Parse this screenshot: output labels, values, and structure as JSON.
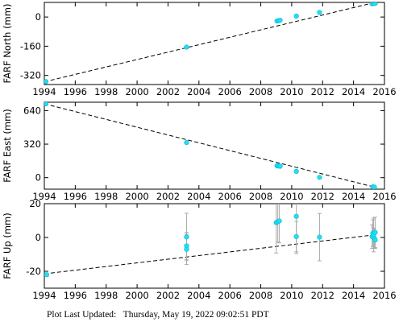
{
  "chart_data": [
    {
      "type": "scatter",
      "ylabel": "FARF North (mm)",
      "xlim": [
        1994,
        2016
      ],
      "ylim": [
        -370,
        80
      ],
      "xticks": [
        1994,
        1996,
        1998,
        2000,
        2002,
        2004,
        2006,
        2008,
        2010,
        2012,
        2014,
        2016
      ],
      "yticks": [
        -320,
        -160,
        0
      ],
      "grid": false,
      "trend": {
        "x": [
          1994.0,
          2015.3
        ],
        "y": [
          -355,
          78
        ]
      },
      "points": [
        {
          "x": 1994.1,
          "y": -354,
          "err": 0
        },
        {
          "x": 2003.2,
          "y": -165,
          "err": 0
        },
        {
          "x": 2009.05,
          "y": -22,
          "err": 0
        },
        {
          "x": 2009.15,
          "y": -20,
          "err": 0
        },
        {
          "x": 2009.25,
          "y": -18,
          "err": 0
        },
        {
          "x": 2010.3,
          "y": 5,
          "err": 0
        },
        {
          "x": 2011.8,
          "y": 25,
          "err": 0
        },
        {
          "x": 2015.2,
          "y": 72,
          "err": 0
        },
        {
          "x": 2015.3,
          "y": 75,
          "err": 0
        },
        {
          "x": 2015.4,
          "y": 74,
          "err": 0
        }
      ]
    },
    {
      "type": "scatter",
      "ylabel": "FARF East (mm)",
      "xlim": [
        1994,
        2016
      ],
      "ylim": [
        -110,
        720
      ],
      "xticks": [
        1994,
        1996,
        1998,
        2000,
        2002,
        2004,
        2006,
        2008,
        2010,
        2012,
        2014,
        2016
      ],
      "yticks": [
        0,
        320,
        640
      ],
      "grid": false,
      "trend": {
        "x": [
          1994.0,
          2015.3
        ],
        "y": [
          705,
          -88
        ]
      },
      "points": [
        {
          "x": 1994.1,
          "y": 705,
          "err": 0
        },
        {
          "x": 2003.2,
          "y": 335,
          "err": 0
        },
        {
          "x": 2009.05,
          "y": 113,
          "err": 0
        },
        {
          "x": 2009.15,
          "y": 111,
          "err": 0
        },
        {
          "x": 2009.25,
          "y": 109,
          "err": 0
        },
        {
          "x": 2010.3,
          "y": 60,
          "err": 0
        },
        {
          "x": 2011.8,
          "y": 3,
          "err": 0
        },
        {
          "x": 2015.25,
          "y": -88,
          "err": 0
        },
        {
          "x": 2015.35,
          "y": -90,
          "err": 0
        }
      ]
    },
    {
      "type": "scatter",
      "ylabel": "FARF Up (mm)",
      "xlim": [
        1994,
        2016
      ],
      "ylim": [
        -30,
        20
      ],
      "xticks": [
        1994,
        1996,
        1998,
        2000,
        2002,
        2004,
        2006,
        2008,
        2010,
        2012,
        2014,
        2016
      ],
      "yticks": [
        -20,
        0,
        20
      ],
      "grid": false,
      "trend": {
        "x": [
          1994.0,
          2015.3
        ],
        "y": [
          -21.5,
          1.5
        ]
      },
      "points": [
        {
          "x": 1994.15,
          "y": -22,
          "err": 1
        },
        {
          "x": 2003.2,
          "y": 0.3,
          "err": 14
        },
        {
          "x": 2003.2,
          "y": -5,
          "err": 8
        },
        {
          "x": 2003.2,
          "y": -7,
          "err": 9
        },
        {
          "x": 2009.0,
          "y": 8.8,
          "err": 18
        },
        {
          "x": 2009.1,
          "y": 9.3,
          "err": 12
        },
        {
          "x": 2009.2,
          "y": 9.8,
          "err": 13
        },
        {
          "x": 2010.3,
          "y": 12.5,
          "err": 22
        },
        {
          "x": 2010.3,
          "y": 0.5,
          "err": 9
        },
        {
          "x": 2011.8,
          "y": 0.2,
          "err": 14
        },
        {
          "x": 2015.2,
          "y": 0.5,
          "err": 7
        },
        {
          "x": 2015.25,
          "y": 2.5,
          "err": 8
        },
        {
          "x": 2015.3,
          "y": 1.5,
          "err": 10
        },
        {
          "x": 2015.35,
          "y": -0.5,
          "err": 6
        },
        {
          "x": 2015.4,
          "y": 3,
          "err": 9
        },
        {
          "x": 2015.4,
          "y": -1.5,
          "err": 5
        }
      ]
    }
  ],
  "footer": {
    "label": "Plot Last Updated:",
    "timestamp": "Thursday, May 19, 2022 09:02:51 PDT"
  },
  "colors": {
    "point": "#1fe0f5",
    "errorbar": "#aaaaaa",
    "trend": "#000000",
    "axis": "#000000"
  }
}
